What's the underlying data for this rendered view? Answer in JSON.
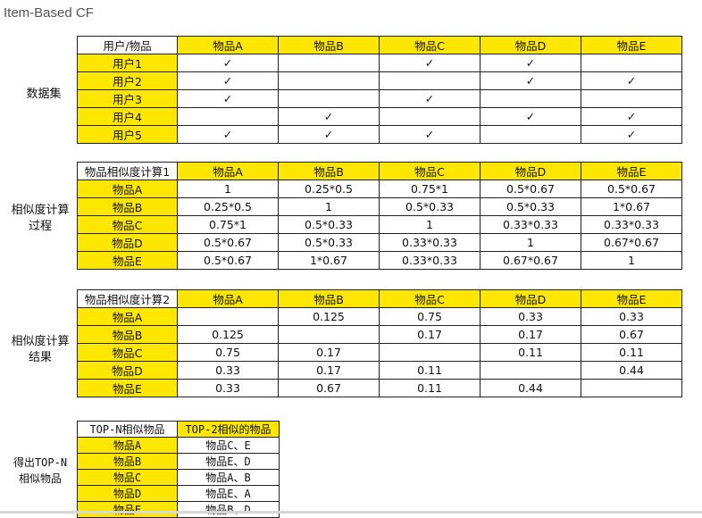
{
  "title": "Item-Based CF",
  "sections": {
    "dataset": "数据集",
    "calc_process": [
      "相似度计算",
      "过程"
    ],
    "calc_result": [
      "相似度计算",
      "结果"
    ],
    "topn": [
      "得出TOP-N",
      "相似物品"
    ]
  },
  "table1": {
    "corner": "用户/物品",
    "columns": [
      "物品A",
      "物品B",
      "物品C",
      "物品D",
      "物品E"
    ],
    "rows": [
      {
        "label": "用户1",
        "cells": [
          "✓",
          "",
          "✓",
          "✓",
          ""
        ]
      },
      {
        "label": "用户2",
        "cells": [
          "✓",
          "",
          "",
          "✓",
          "✓"
        ]
      },
      {
        "label": "用户3",
        "cells": [
          "✓",
          "",
          "✓",
          "",
          ""
        ]
      },
      {
        "label": "用户4",
        "cells": [
          "",
          "✓",
          "",
          "✓",
          "✓"
        ]
      },
      {
        "label": "用户5",
        "cells": [
          "✓",
          "✓",
          "✓",
          "",
          "✓"
        ]
      }
    ]
  },
  "table2": {
    "corner": "物品相似度计算1",
    "columns": [
      "物品A",
      "物品B",
      "物品C",
      "物品D",
      "物品E"
    ],
    "rows": [
      {
        "label": "物品A",
        "cells": [
          "1",
          "0.25*0.5",
          "0.75*1",
          "0.5*0.67",
          "0.5*0.67"
        ]
      },
      {
        "label": "物品B",
        "cells": [
          "0.25*0.5",
          "1",
          "0.5*0.33",
          "0.5*0.33",
          "1*0.67"
        ]
      },
      {
        "label": "物品C",
        "cells": [
          "0.75*1",
          "0.5*0.33",
          "1",
          "0.33*0.33",
          "0.33*0.33"
        ]
      },
      {
        "label": "物品D",
        "cells": [
          "0.5*0.67",
          "0.5*0.33",
          "0.33*0.33",
          "1",
          "0.67*0.67"
        ]
      },
      {
        "label": "物品E",
        "cells": [
          "0.5*0.67",
          "1*0.67",
          "0.33*0.33",
          "0.67*0.67",
          "1"
        ]
      }
    ]
  },
  "table3": {
    "corner": "物品相似度计算2",
    "columns": [
      "物品A",
      "物品B",
      "物品C",
      "物品D",
      "物品E"
    ],
    "rows": [
      {
        "label": "物品A",
        "cells": [
          "",
          "0.125",
          "0.75",
          "0.33",
          "0.33"
        ]
      },
      {
        "label": "物品B",
        "cells": [
          "0.125",
          "",
          "0.17",
          "0.17",
          "0.67"
        ]
      },
      {
        "label": "物品C",
        "cells": [
          "0.75",
          "0.17",
          "",
          "0.11",
          "0.11"
        ]
      },
      {
        "label": "物品D",
        "cells": [
          "0.33",
          "0.17",
          "0.11",
          "",
          "0.44"
        ]
      },
      {
        "label": "物品E",
        "cells": [
          "0.33",
          "0.67",
          "0.11",
          "0.44",
          ""
        ]
      }
    ]
  },
  "table4": {
    "headers": [
      "TOP-N相似物品",
      "TOP-2相似的物品"
    ],
    "rows": [
      {
        "label": "物品A",
        "value": "物品C、E"
      },
      {
        "label": "物品B",
        "value": "物品E、D"
      },
      {
        "label": "物品C",
        "value": "物品A、B"
      },
      {
        "label": "物品D",
        "value": "物品E、A"
      },
      {
        "label": "物品E",
        "value": "物品B、D"
      }
    ]
  }
}
